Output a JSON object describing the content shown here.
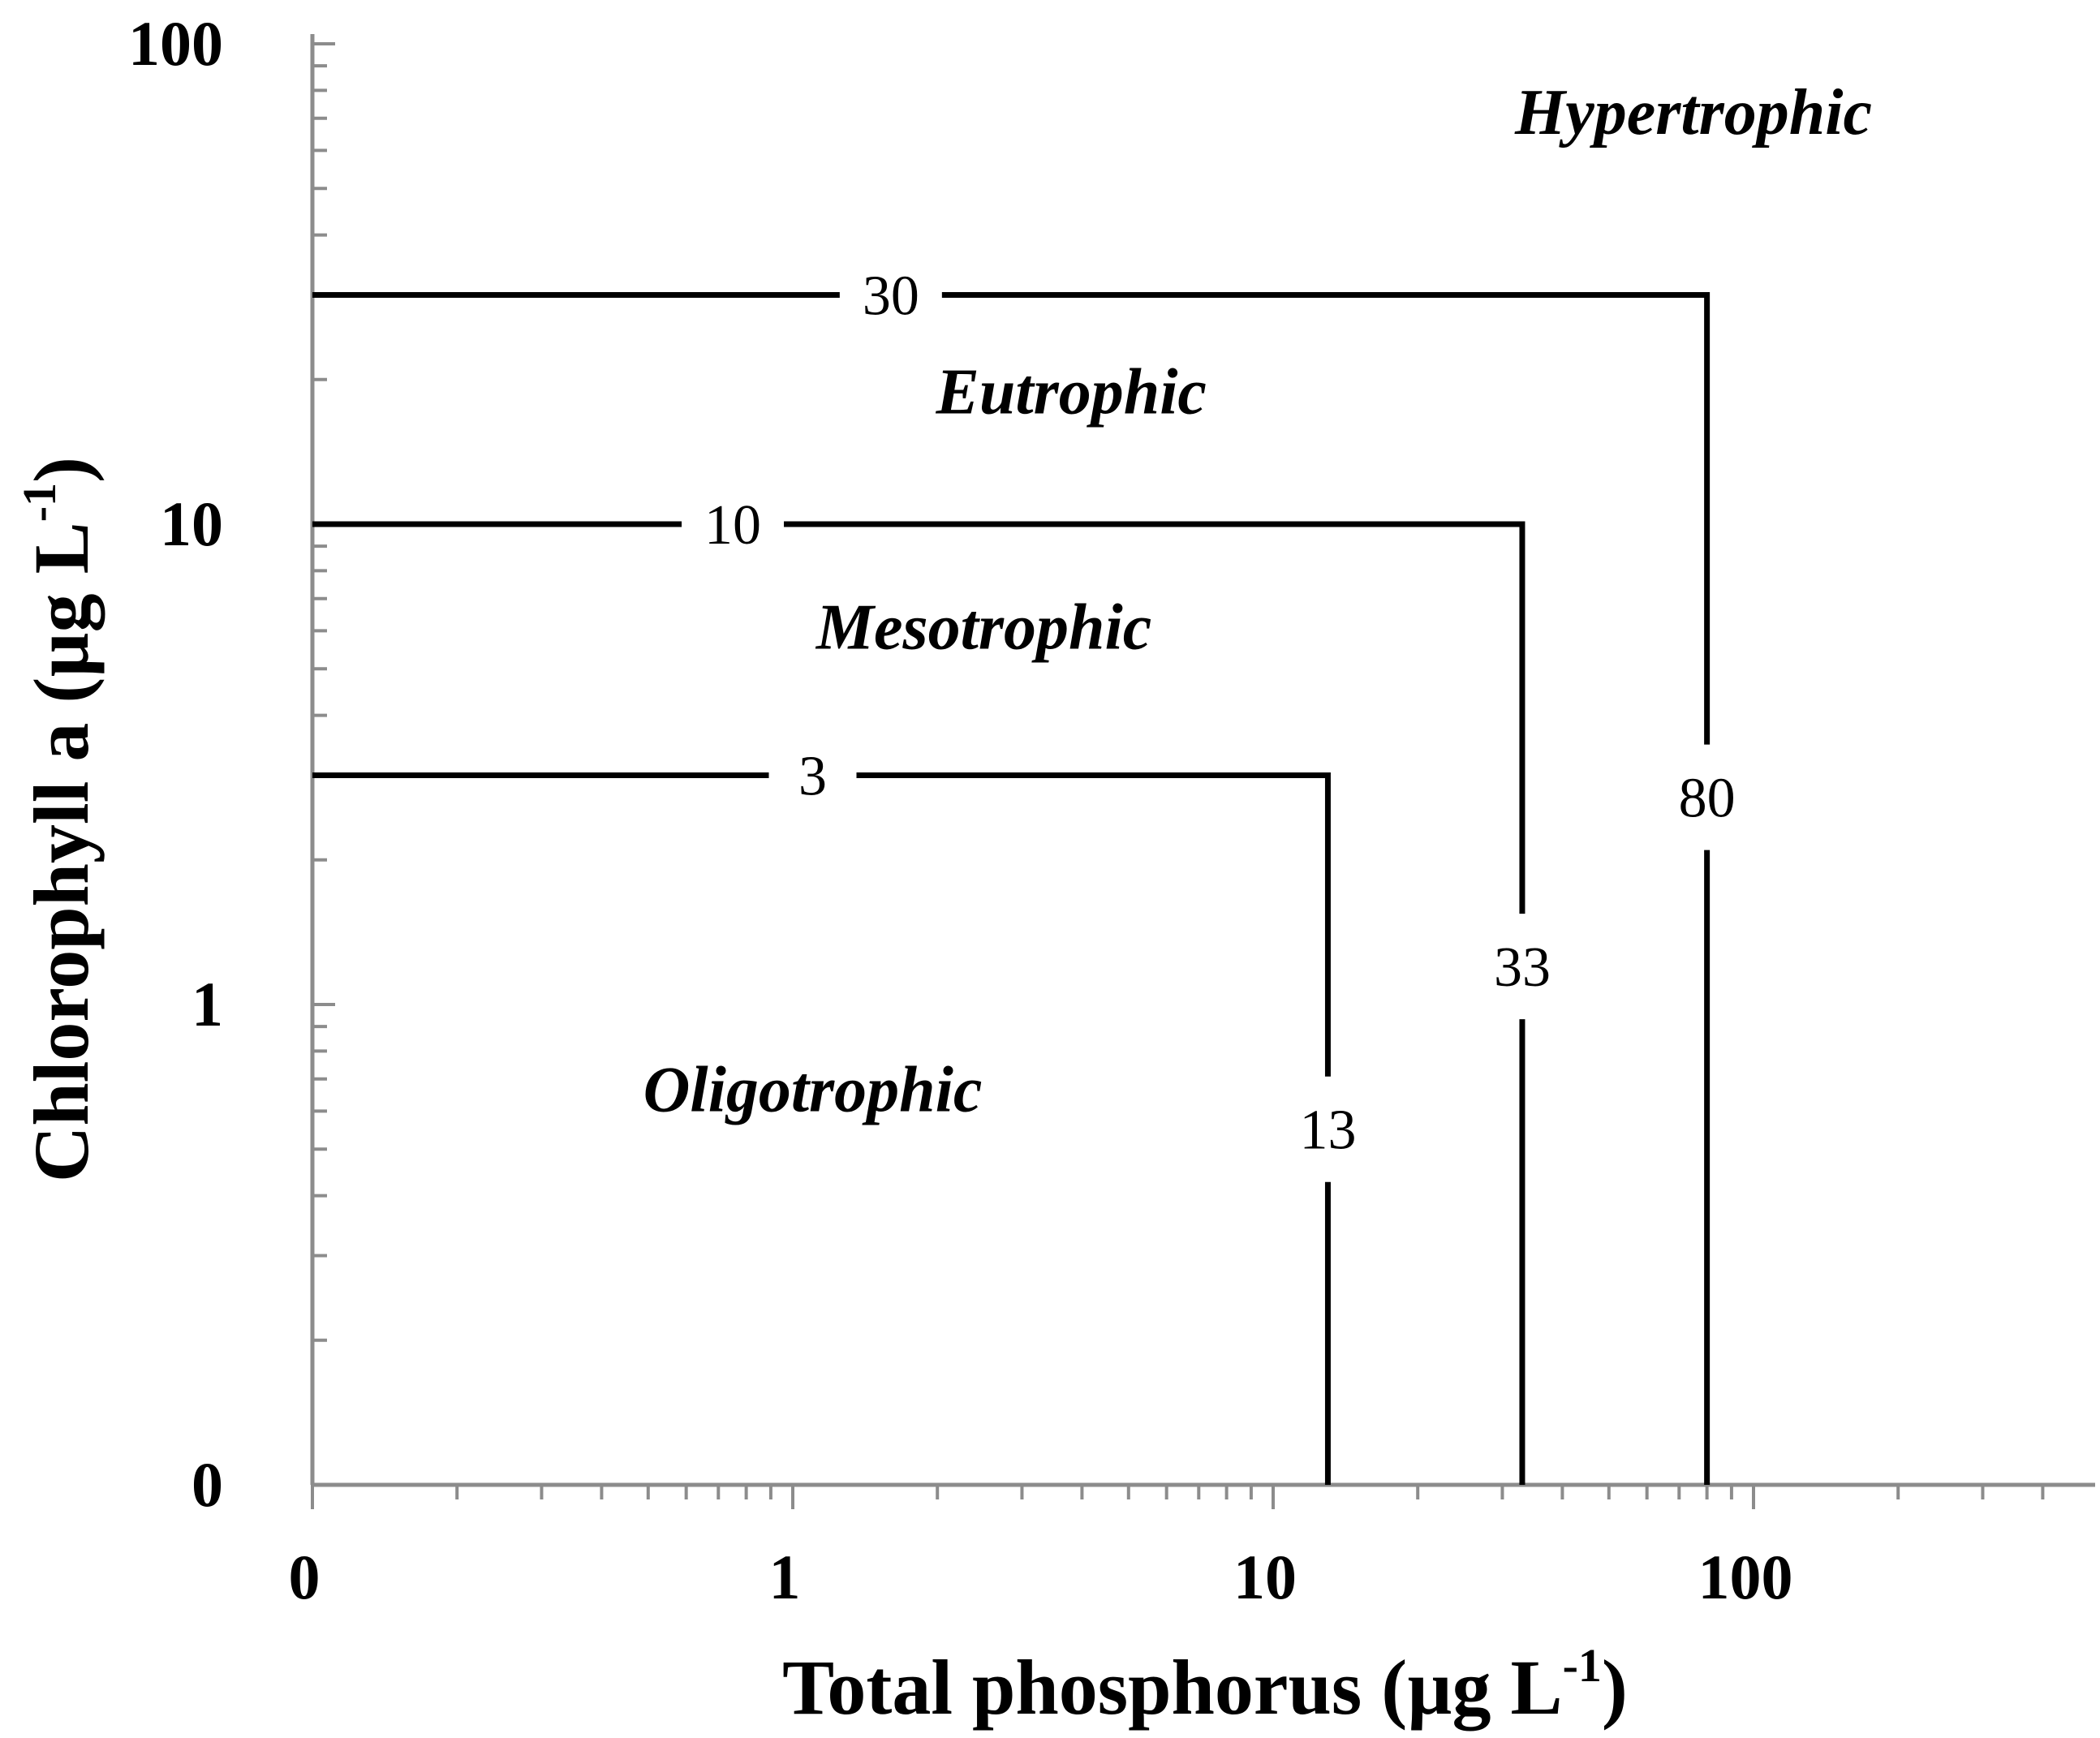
{
  "chart_data": {
    "type": "line",
    "x_axis": {
      "title_main": "Total phosphorus (µg L",
      "title_sup": "-1",
      "title_close": ")",
      "scale": "log",
      "tick_values": [
        0.1,
        1,
        10,
        100
      ],
      "tick_labels": [
        "0",
        "1",
        "10",
        "100"
      ],
      "range": [
        0.1,
        400
      ]
    },
    "y_axis": {
      "title_main": "Chlorophyll a (µg L",
      "title_sup": "-1",
      "title_close": ")",
      "scale": "log",
      "tick_values": [
        0.1,
        1,
        10,
        100
      ],
      "tick_labels": [
        "0",
        "1",
        "10",
        "100"
      ],
      "range": [
        0.1,
        100
      ]
    },
    "boundaries": [
      {
        "chl_threshold": 3,
        "chl_label": "3",
        "tp_threshold": 13,
        "tp_label": "13",
        "tp_label_at_chl": 0.55
      },
      {
        "chl_threshold": 10,
        "chl_label": "10",
        "tp_threshold": 33,
        "tp_label": "33",
        "tp_label_at_chl": 1.2
      },
      {
        "chl_threshold": 30,
        "chl_label": "30",
        "tp_threshold": 80,
        "tp_label": "80",
        "tp_label_at_chl": 2.7
      }
    ],
    "chl_label_tp_positions": [
      1.1,
      0.75,
      1.6
    ],
    "regions": [
      {
        "label": "Oligotrophic",
        "tp": 1.1,
        "chl": 0.6
      },
      {
        "label": "Mesotrophic",
        "tp": 2.5,
        "chl": 5.5
      },
      {
        "label": "Eutrophic",
        "tp": 3.8,
        "chl": 17
      },
      {
        "label": "Hypertrophic",
        "tp": 75,
        "chl": 65
      }
    ],
    "grid": false,
    "legend": "none"
  }
}
